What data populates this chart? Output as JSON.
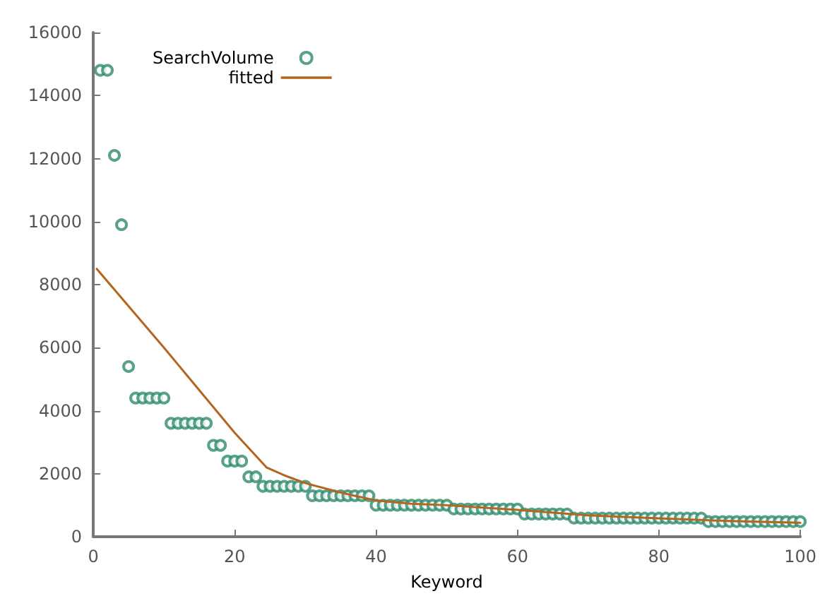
{
  "chart_data": {
    "type": "scatter",
    "xlabel": "Keyword",
    "xlim": [
      0,
      100
    ],
    "xticks": [
      0,
      20,
      40,
      60,
      80,
      100
    ],
    "ylim": [
      0,
      16000
    ],
    "yticks": [
      0,
      2000,
      4000,
      6000,
      8000,
      10000,
      12000,
      14000,
      16000
    ],
    "grid": false,
    "legend": "top left",
    "series": [
      {
        "name": "SearchVolume",
        "marker": "circle",
        "color": "#2e8b6e",
        "x": [
          1,
          2,
          3,
          4,
          5,
          6,
          7,
          8,
          9,
          10,
          11,
          12,
          13,
          14,
          15,
          16,
          17,
          18,
          19,
          20,
          21,
          22,
          23,
          24,
          25,
          26,
          27,
          28,
          29,
          30,
          31,
          32,
          33,
          34,
          35,
          36,
          37,
          38,
          39,
          40,
          41,
          42,
          43,
          44,
          45,
          46,
          47,
          48,
          49,
          50,
          51,
          52,
          53,
          54,
          55,
          56,
          57,
          58,
          59,
          60,
          61,
          62,
          63,
          64,
          65,
          66,
          67,
          68,
          69,
          70,
          71,
          72,
          73,
          74,
          75,
          76,
          77,
          78,
          79,
          80,
          81,
          82,
          83,
          84,
          85,
          86,
          87,
          88,
          89,
          90,
          91,
          92,
          93,
          94,
          95,
          96,
          97,
          98,
          99,
          100
        ],
        "values": [
          14800,
          14800,
          12100,
          9900,
          5400,
          4400,
          4400,
          4400,
          4400,
          4400,
          3600,
          3600,
          3600,
          3600,
          3600,
          3600,
          2900,
          2900,
          2400,
          2400,
          2400,
          1900,
          1900,
          1600,
          1600,
          1600,
          1600,
          1600,
          1600,
          1600,
          1300,
          1300,
          1300,
          1300,
          1300,
          1300,
          1300,
          1300,
          1300,
          1000,
          1000,
          1000,
          1000,
          1000,
          1000,
          1000,
          1000,
          1000,
          1000,
          1000,
          880,
          880,
          880,
          880,
          880,
          880,
          880,
          880,
          880,
          880,
          720,
          720,
          720,
          720,
          720,
          720,
          720,
          590,
          590,
          590,
          590,
          590,
          590,
          590,
          590,
          590,
          590,
          590,
          590,
          590,
          590,
          590,
          590,
          590,
          590,
          590,
          480,
          480,
          480,
          480,
          480,
          480,
          480,
          480,
          480,
          480,
          480,
          480,
          480,
          480
        ]
      },
      {
        "name": "fitted",
        "type": "line",
        "marker": "none",
        "line_style": "solid",
        "color": "#b5651d",
        "x": [
          0.5,
          10,
          20,
          24.5,
          27,
          30,
          35,
          40,
          45,
          50,
          60,
          70,
          80,
          90,
          100
        ],
        "values": [
          8500,
          6000,
          3300,
          2200,
          1950,
          1700,
          1400,
          1150,
          1050,
          1000,
          850,
          680,
          580,
          500,
          440
        ]
      }
    ]
  }
}
